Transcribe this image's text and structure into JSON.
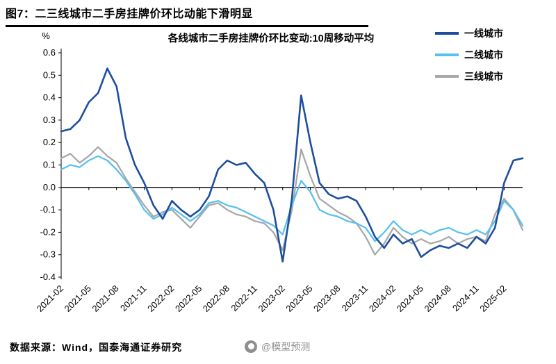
{
  "page": {
    "figure_title": "图7：二三线城市二手房挂牌价环比动能下滑明显",
    "source_note": "数据来源：Wind，国泰海通证券研究",
    "watermark": "@模型预测"
  },
  "chart_data": {
    "type": "line",
    "title": "各线城市二手房挂牌价环比变动:10周移动平均",
    "y_unit": "%",
    "ylim": [
      -0.4,
      0.6
    ],
    "y_ticks": [
      0.6,
      0.5,
      0.4,
      0.3,
      0.2,
      0.1,
      0.0,
      -0.1,
      -0.2,
      -0.3,
      -0.4
    ],
    "x_range": [
      0,
      50
    ],
    "x_unit_note": "months since 2021-02, weekly series smoothed (10-week moving average)",
    "x_tick_positions": [
      0,
      3,
      6,
      9,
      12,
      15,
      18,
      21,
      24,
      27,
      30,
      33,
      36,
      39,
      42,
      45,
      48
    ],
    "x_tick_labels": [
      "2021-02",
      "2021-05",
      "2021-08",
      "2021-11",
      "2022-02",
      "2022-05",
      "2022-08",
      "2022-11",
      "2023-02",
      "2023-05",
      "2023-08",
      "2023-11",
      "2024-02",
      "2024-05",
      "2024-08",
      "2024-11",
      "2025-02"
    ],
    "grid": "off",
    "legend_position": "top-right",
    "series": [
      {
        "name": "一线城市",
        "color": "#1d4e9e",
        "values": [
          0.25,
          0.26,
          0.3,
          0.38,
          0.42,
          0.53,
          0.45,
          0.22,
          0.1,
          0.02,
          -0.08,
          -0.14,
          -0.06,
          -0.1,
          -0.13,
          -0.1,
          -0.04,
          0.08,
          0.12,
          0.1,
          0.11,
          0.06,
          0.02,
          -0.1,
          -0.33,
          -0.05,
          0.41,
          0.2,
          0.02,
          -0.03,
          -0.05,
          -0.04,
          -0.06,
          -0.13,
          -0.22,
          -0.27,
          -0.21,
          -0.25,
          -0.23,
          -0.31,
          -0.28,
          -0.26,
          -0.27,
          -0.25,
          -0.27,
          -0.22,
          -0.25,
          -0.18,
          0.02,
          0.12,
          0.13
        ]
      },
      {
        "name": "二线城市",
        "color": "#59c1ee",
        "values": [
          0.08,
          0.1,
          0.09,
          0.12,
          0.14,
          0.12,
          0.08,
          0.03,
          -0.03,
          -0.1,
          -0.14,
          -0.12,
          -0.09,
          -0.12,
          -0.15,
          -0.12,
          -0.07,
          -0.06,
          -0.08,
          -0.09,
          -0.11,
          -0.13,
          -0.15,
          -0.17,
          -0.21,
          -0.08,
          0.03,
          -0.02,
          -0.1,
          -0.12,
          -0.13,
          -0.15,
          -0.16,
          -0.18,
          -0.24,
          -0.2,
          -0.15,
          -0.19,
          -0.21,
          -0.19,
          -0.21,
          -0.19,
          -0.18,
          -0.2,
          -0.21,
          -0.19,
          -0.21,
          -0.15,
          -0.06,
          -0.1,
          -0.17
        ]
      },
      {
        "name": "三线城市",
        "color": "#a8a8a8",
        "values": [
          0.13,
          0.15,
          0.11,
          0.14,
          0.18,
          0.14,
          0.11,
          0.04,
          -0.02,
          -0.08,
          -0.13,
          -0.11,
          -0.1,
          -0.14,
          -0.18,
          -0.13,
          -0.08,
          -0.07,
          -0.1,
          -0.12,
          -0.13,
          -0.15,
          -0.16,
          -0.2,
          -0.28,
          -0.1,
          0.17,
          0.05,
          -0.05,
          -0.08,
          -0.11,
          -0.13,
          -0.16,
          -0.22,
          -0.3,
          -0.25,
          -0.18,
          -0.22,
          -0.25,
          -0.23,
          -0.25,
          -0.24,
          -0.22,
          -0.25,
          -0.23,
          -0.22,
          -0.24,
          -0.12,
          -0.05,
          -0.1,
          -0.19
        ]
      }
    ]
  }
}
